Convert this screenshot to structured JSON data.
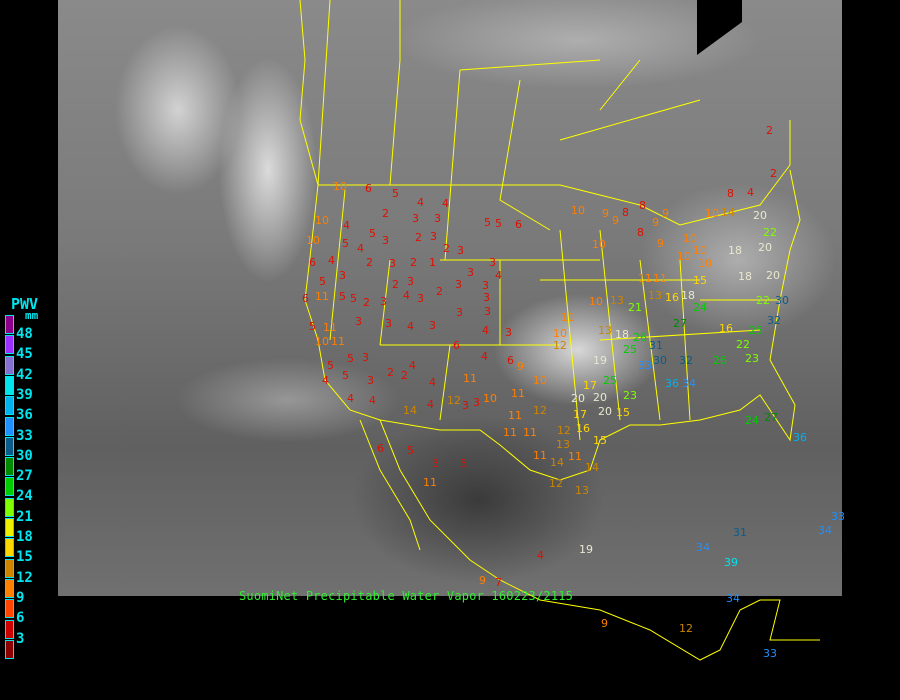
{
  "caption": "SuomiNet Precipitable Water Vapor 160223/2115",
  "legend": {
    "title": "PWV",
    "unit": "mm",
    "labels": [
      "48",
      "45",
      "42",
      "39",
      "36",
      "33",
      "30",
      "27",
      "24",
      "21",
      "18",
      "15",
      "12",
      "9",
      "6",
      "3"
    ],
    "colors": [
      "#8b008b",
      "#9b30ff",
      "#8470d0",
      "#00e5ee",
      "#00b2ee",
      "#1e90ff",
      "#0a5c8a",
      "#008b00",
      "#00cd00",
      "#7fff00",
      "#eeee00",
      "#ffd700",
      "#cd8500",
      "#ff7f00",
      "#ff4500",
      "#cd0000",
      "#8b0000"
    ]
  },
  "border_color": "#ffff00",
  "stations": [
    10,
    6,
    5,
    4,
    4,
    2,
    3,
    3,
    5,
    5,
    6,
    10,
    9,
    8,
    8,
    9,
    10,
    4,
    5,
    3,
    2,
    3,
    10,
    5,
    4,
    2,
    3,
    2,
    1,
    2,
    3,
    3,
    3,
    4,
    6,
    4,
    3,
    2,
    3,
    5,
    6,
    11,
    5,
    5,
    2,
    3,
    4,
    3,
    2,
    3,
    3,
    3,
    3,
    3,
    4,
    3,
    3,
    4,
    3,
    3,
    11,
    5,
    10,
    11,
    6,
    4,
    6,
    9,
    11,
    10,
    13,
    21,
    13,
    16,
    18,
    24,
    27,
    13,
    18,
    26,
    25,
    31,
    32,
    30,
    33,
    36,
    34,
    26,
    19,
    25,
    17,
    20,
    20,
    20,
    15,
    23,
    10,
    12,
    10,
    11,
    11,
    12,
    10,
    11,
    12,
    17,
    11,
    11,
    12,
    15,
    13,
    11,
    14,
    11,
    14,
    12,
    13,
    11,
    5,
    3,
    5,
    6,
    5,
    3,
    5,
    5,
    3,
    4,
    2,
    2,
    4,
    4,
    4,
    4,
    14,
    4,
    3,
    3,
    2,
    2,
    8,
    4,
    10,
    14,
    20,
    22,
    20,
    20,
    18,
    10,
    10,
    9,
    10,
    15,
    18,
    22,
    25,
    23,
    32,
    30,
    16,
    22,
    10,
    9,
    8,
    9,
    10,
    11,
    11,
    36,
    24,
    27,
    34,
    33,
    31,
    39,
    34,
    34,
    33,
    12,
    9,
    19,
    4,
    7,
    9,
    16
  ]
}
